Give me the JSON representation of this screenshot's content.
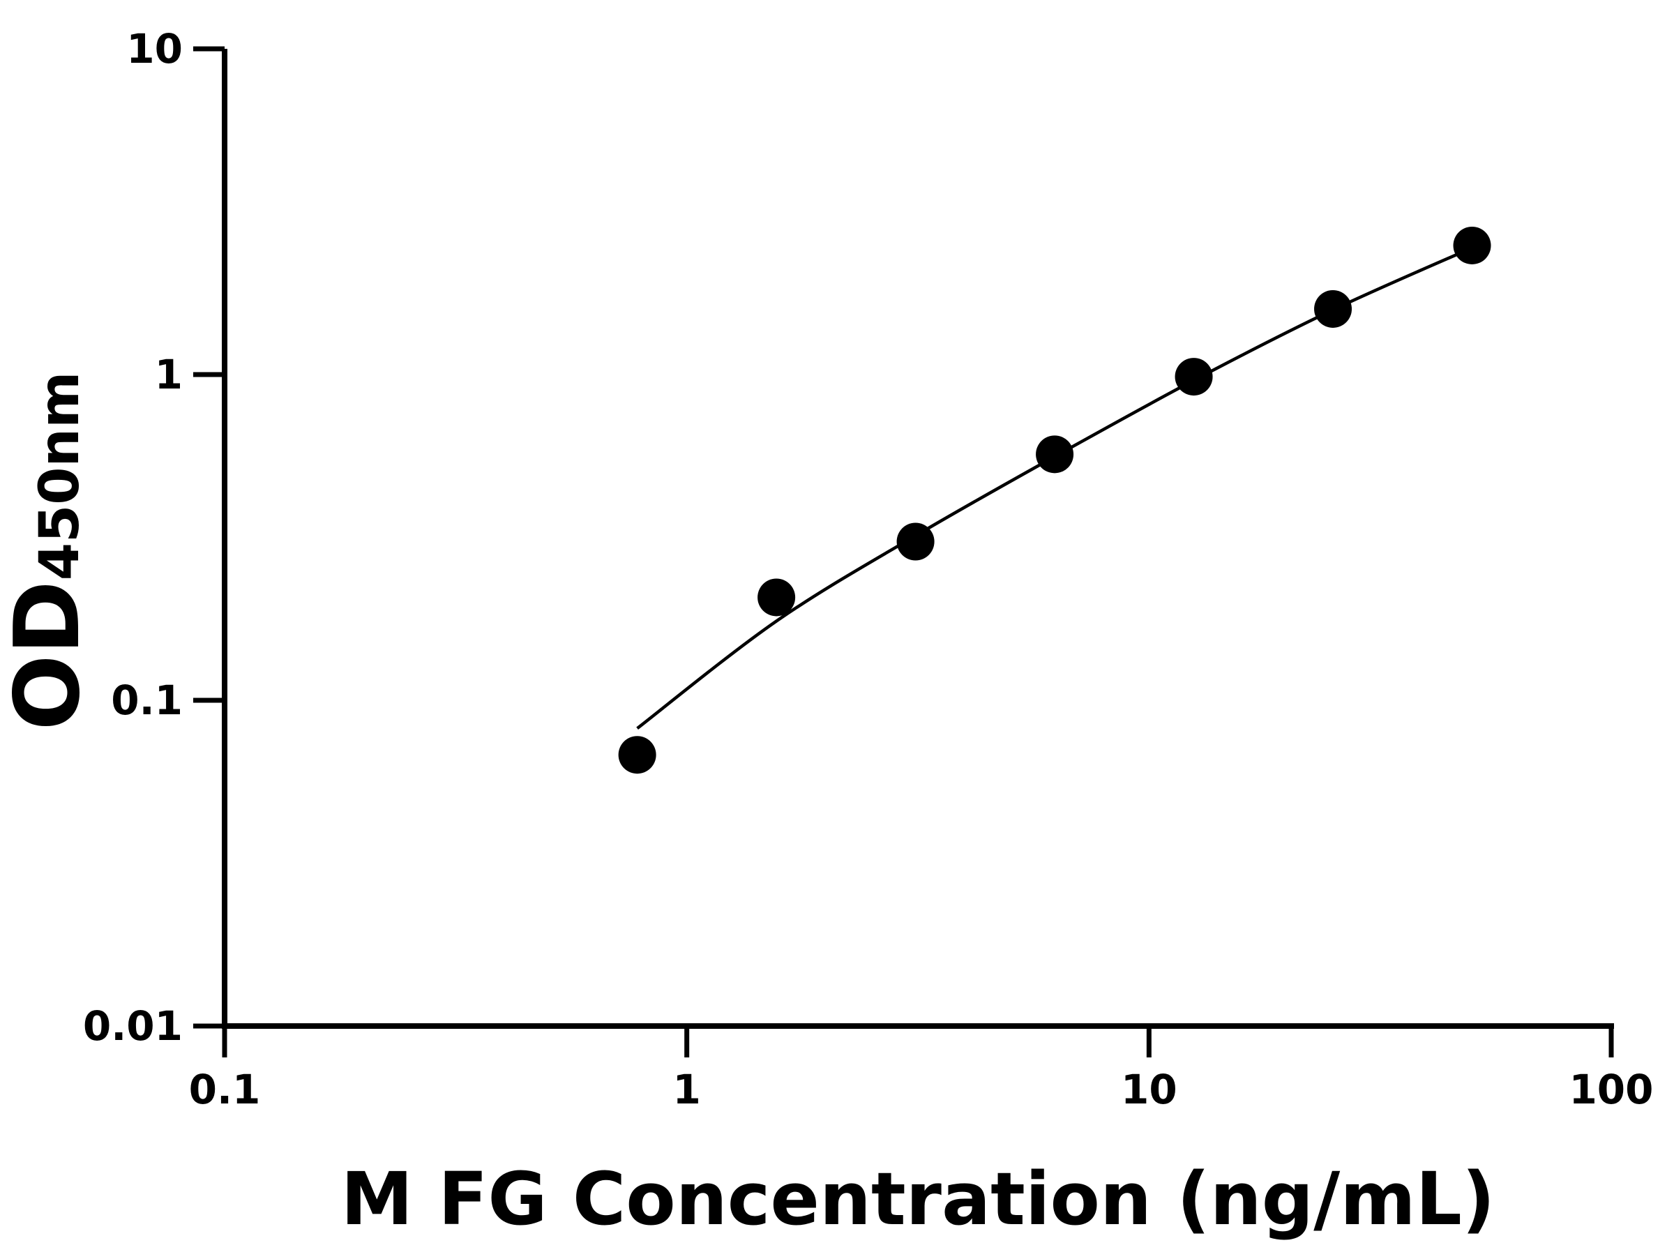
{
  "chart_data": {
    "type": "scatter",
    "title": "",
    "xlabel": "M FG Concentration (ng/mL)",
    "ylabel_main": "OD",
    "ylabel_sub": "450nm",
    "x_scale": "log",
    "y_scale": "log",
    "xlim": [
      0.1,
      100
    ],
    "ylim": [
      0.01,
      10
    ],
    "x_ticks": [
      "0.1",
      "1",
      "10",
      "100"
    ],
    "y_ticks": [
      "0.01",
      "0.1",
      "1",
      "10"
    ],
    "grid": false,
    "points": {
      "x": [
        0.78125,
        1.5625,
        3.125,
        6.25,
        12.5,
        25,
        50
      ],
      "y": [
        0.068,
        0.207,
        0.307,
        0.569,
        0.985,
        1.59,
        2.49
      ]
    },
    "fit_curve": {
      "x": [
        0.78125,
        1.5625,
        3.125,
        6.25,
        12.5,
        25,
        50
      ],
      "y": [
        0.082,
        0.175,
        0.32,
        0.56,
        0.96,
        1.58,
        2.45
      ]
    },
    "colors": {
      "marker": "#000000",
      "line": "#000000",
      "axis": "#000000"
    }
  }
}
